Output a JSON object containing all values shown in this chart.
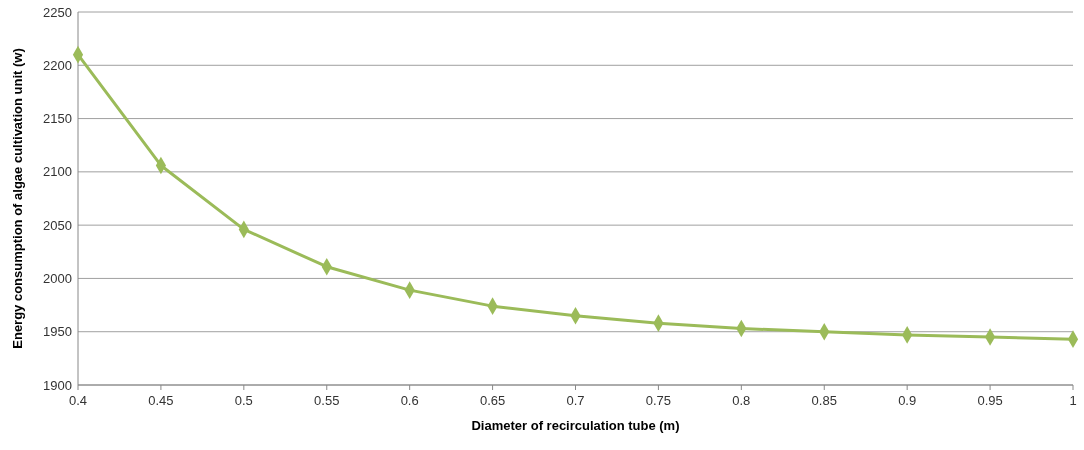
{
  "chart_data": {
    "type": "line",
    "xlabel": "Diameter of recirculation tube (m)",
    "ylabel": "Energy consumption of algae cultivation unit (w)",
    "x": [
      0.4,
      0.45,
      0.5,
      0.55,
      0.6,
      0.65,
      0.7,
      0.75,
      0.8,
      0.85,
      0.9,
      0.95,
      1
    ],
    "series": [
      {
        "color": "#9bbb59",
        "values": [
          2210,
          2106,
          2046,
          2011,
          1989,
          1974,
          1965,
          1958,
          1953,
          1950,
          1947,
          1945,
          1943
        ]
      }
    ],
    "xlim": [
      0.4,
      1
    ],
    "xticks": [
      0.4,
      0.45,
      0.5,
      0.55,
      0.6,
      0.65,
      0.7,
      0.75,
      0.8,
      0.85,
      0.9,
      0.95,
      1
    ],
    "ylim": [
      1900,
      2250
    ],
    "yticks": [
      1900,
      1950,
      2000,
      2050,
      2100,
      2150,
      2200,
      2250
    ],
    "grid": "y",
    "marker": "diamond",
    "line_style": "solid"
  }
}
